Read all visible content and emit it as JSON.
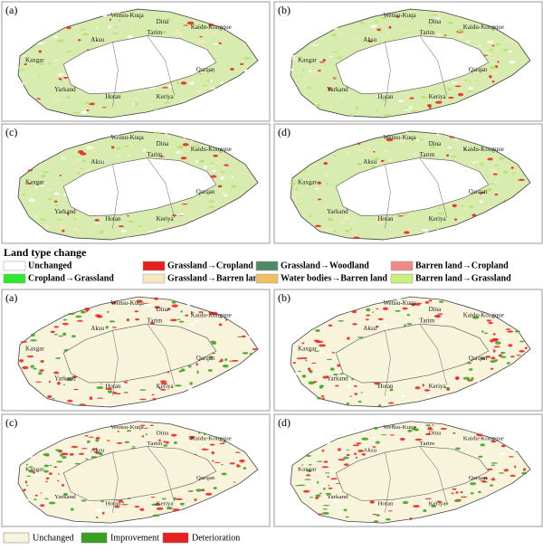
{
  "top_maps": {
    "panels": [
      "(a)",
      "(b)",
      "(c)",
      "(d)"
    ]
  },
  "region_names": [
    "Wensu-Kuqa",
    "Dina",
    "Tarim",
    "Kaidu-Kongque",
    "Aksu",
    "Kaxgar",
    "Yarkand",
    "Hotan",
    "Keriya",
    "Qarqan"
  ],
  "legend": {
    "title": "Land type change",
    "items": [
      {
        "label": "Unchanged",
        "color": "#ffffff"
      },
      {
        "label": "Grassland→Cropland",
        "color": "#e8201c"
      },
      {
        "label": "Grassland→Woodland",
        "color": "#4e8a6a"
      },
      {
        "label": "Barren land→Cropland",
        "color": "#f08a86"
      },
      {
        "label": "Cropland→Grassland",
        "color": "#2ee82e"
      },
      {
        "label": "Grassland→Barren land",
        "color": "#f8e6c0"
      },
      {
        "label": "Water bodies→Barren land",
        "color": "#f0c060"
      },
      {
        "label": "Barren land→Grassland",
        "color": "#c8f080"
      }
    ]
  },
  "bottom_maps": {
    "panels": [
      "(a)",
      "(b)",
      "(c)",
      "(d)"
    ]
  },
  "bottom_legend": {
    "items": [
      {
        "label": "Unchanged",
        "color": "#f8f4dc"
      },
      {
        "label": "Improvement",
        "color": "#3aa020"
      },
      {
        "label": "Deterioration",
        "color": "#e82020"
      }
    ]
  }
}
